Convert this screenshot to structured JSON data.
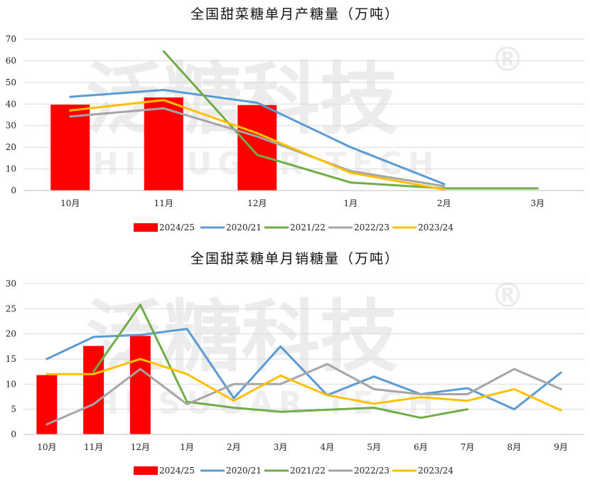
{
  "watermark": {
    "main": "泛糖科技",
    "sub": "HI SUGAR TECH",
    "mark": "®"
  },
  "series_styles": [
    {
      "name": "2024/25",
      "color": "#ff0000",
      "kind": "bar"
    },
    {
      "name": "2020/21",
      "color": "#5b9bd5",
      "kind": "line"
    },
    {
      "name": "2021/22",
      "color": "#70ad47",
      "kind": "line"
    },
    {
      "name": "2022/23",
      "color": "#a5a5a5",
      "kind": "line"
    },
    {
      "name": "2023/24",
      "color": "#ffc000",
      "kind": "line"
    }
  ],
  "chart_data": [
    {
      "type": "bar+line",
      "title": "全国甜菜糖单月产糖量（万吨）",
      "categories": [
        "10月",
        "11月",
        "12月",
        "1月",
        "2月",
        "3月"
      ],
      "ylim": [
        0,
        70
      ],
      "yticks": [
        0,
        10,
        20,
        30,
        40,
        50,
        60,
        70
      ],
      "grid": true,
      "legend": "bottom",
      "series": [
        {
          "name": "2024/25",
          "type": "bar",
          "values": [
            39.7,
            43.0,
            39.5,
            null,
            null,
            null
          ]
        },
        {
          "name": "2020/21",
          "type": "line",
          "values": [
            43.3,
            46.5,
            40.6,
            20.0,
            3.0,
            null
          ]
        },
        {
          "name": "2021/22",
          "type": "line",
          "values": [
            null,
            64.3,
            16.5,
            3.7,
            1.0,
            1.0
          ]
        },
        {
          "name": "2022/23",
          "type": "line",
          "values": [
            34.2,
            38.0,
            25.0,
            9.0,
            2.0,
            null
          ]
        },
        {
          "name": "2023/24",
          "type": "line",
          "values": [
            37.0,
            41.8,
            26.5,
            8.2,
            0.5,
            null
          ]
        }
      ]
    },
    {
      "type": "bar+line",
      "title": "全国甜菜糖单月销糖量（万吨）",
      "categories": [
        "10月",
        "11月",
        "12月",
        "1月",
        "2月",
        "3月",
        "4月",
        "5月",
        "6月",
        "7月",
        "8月",
        "9月"
      ],
      "ylim": [
        0,
        30
      ],
      "yticks": [
        0,
        5,
        10,
        15,
        20,
        25,
        30
      ],
      "grid": true,
      "legend": "bottom",
      "series": [
        {
          "name": "2024/25",
          "type": "bar",
          "values": [
            11.8,
            17.6,
            19.6,
            null,
            null,
            null,
            null,
            null,
            null,
            null,
            null,
            null
          ]
        },
        {
          "name": "2020/21",
          "type": "line",
          "values": [
            15.0,
            19.4,
            19.8,
            21.0,
            7.2,
            17.5,
            7.8,
            11.5,
            8.0,
            9.2,
            5.0,
            12.3
          ]
        },
        {
          "name": "2021/22",
          "type": "line",
          "values": [
            null,
            12.5,
            25.8,
            6.5,
            5.3,
            4.5,
            4.9,
            5.3,
            3.3,
            5.0,
            null,
            null
          ]
        },
        {
          "name": "2022/23",
          "type": "line",
          "values": [
            2.0,
            6.0,
            13.0,
            6.0,
            10.0,
            10.0,
            14.0,
            9.0,
            8.0,
            8.0,
            13.0,
            9.0
          ]
        },
        {
          "name": "2023/24",
          "type": "line",
          "values": [
            12.0,
            12.0,
            15.0,
            12.0,
            6.7,
            11.7,
            7.8,
            6.1,
            7.4,
            6.7,
            9.0,
            4.8
          ]
        }
      ]
    }
  ]
}
